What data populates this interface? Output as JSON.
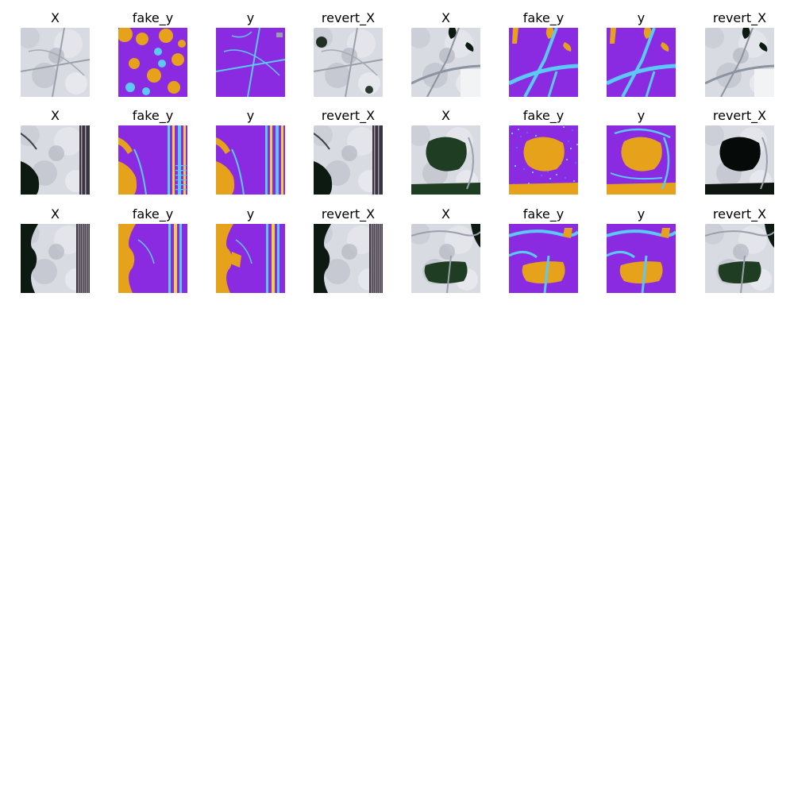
{
  "colors": {
    "background_class": "#8a2be2",
    "road_class": "#5cc8f5",
    "water_class": "#e6a21a",
    "satellite_light": "#d9dbe2",
    "satellite_dark": "#0d1a12",
    "satellite_water_green": "#1f3d22"
  },
  "rows": [
    {
      "panels": [
        {
          "title": "X",
          "kind": "satellite",
          "scene": "scene1"
        },
        {
          "title": "fake_y",
          "kind": "mask",
          "scene": "scene1_fake"
        },
        {
          "title": "y",
          "kind": "mask",
          "scene": "scene1_gt"
        },
        {
          "title": "revert_X",
          "kind": "satellite",
          "scene": "scene1_rev"
        },
        {
          "title": "X",
          "kind": "satellite",
          "scene": "scene2"
        },
        {
          "title": "fake_y",
          "kind": "mask",
          "scene": "scene2_fake"
        },
        {
          "title": "y",
          "kind": "mask",
          "scene": "scene2_gt"
        },
        {
          "title": "revert_X",
          "kind": "satellite",
          "scene": "scene2_rev"
        }
      ]
    },
    {
      "panels": [
        {
          "title": "X",
          "kind": "satellite",
          "scene": "scene3"
        },
        {
          "title": "fake_y",
          "kind": "mask",
          "scene": "scene3_fake"
        },
        {
          "title": "y",
          "kind": "mask",
          "scene": "scene3_gt"
        },
        {
          "title": "revert_X",
          "kind": "satellite",
          "scene": "scene3_rev"
        },
        {
          "title": "X",
          "kind": "satellite",
          "scene": "scene4"
        },
        {
          "title": "fake_y",
          "kind": "mask",
          "scene": "scene4_fake"
        },
        {
          "title": "y",
          "kind": "mask",
          "scene": "scene4_gt"
        },
        {
          "title": "revert_X",
          "kind": "satellite",
          "scene": "scene4_rev"
        }
      ]
    },
    {
      "panels": [
        {
          "title": "X",
          "kind": "satellite",
          "scene": "scene5"
        },
        {
          "title": "fake_y",
          "kind": "mask",
          "scene": "scene5_fake"
        },
        {
          "title": "y",
          "kind": "mask",
          "scene": "scene5_gt"
        },
        {
          "title": "revert_X",
          "kind": "satellite",
          "scene": "scene5_rev"
        },
        {
          "title": "X",
          "kind": "satellite",
          "scene": "scene6"
        },
        {
          "title": "fake_y",
          "kind": "mask",
          "scene": "scene6_fake"
        },
        {
          "title": "y",
          "kind": "mask",
          "scene": "scene6_gt"
        },
        {
          "title": "revert_X",
          "kind": "satellite",
          "scene": "scene6_rev"
        }
      ]
    }
  ]
}
